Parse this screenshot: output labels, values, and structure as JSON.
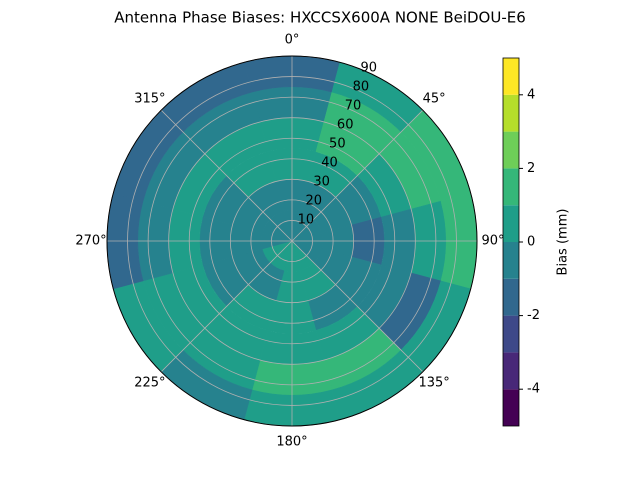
{
  "chart_data": {
    "type": "polar_contour",
    "title": "Antenna Phase Biases: HXCCSX600A      NONE BeiDOU-E6",
    "azimuth": [
      0,
      30,
      60,
      90,
      120,
      150,
      180,
      210,
      240,
      270,
      300,
      330
    ],
    "zenith_edges": [
      0,
      15,
      30,
      45,
      60,
      75,
      90
    ],
    "values": [
      [
        -0.5,
        -0.5,
        0.5,
        0.5,
        -0.5,
        -1.5
      ],
      [
        -0.5,
        -0.5,
        0.5,
        1.5,
        1.5,
        0.5
      ],
      [
        -0.5,
        -0.5,
        -0.5,
        0.5,
        1.5,
        1.5
      ],
      [
        -0.5,
        -0.5,
        -1.5,
        -0.5,
        0.5,
        1.5
      ],
      [
        -0.5,
        -0.5,
        -0.5,
        -0.5,
        -1.5,
        0.5
      ],
      [
        0.5,
        0.5,
        -0.5,
        0.5,
        1.5,
        0.5
      ],
      [
        0.5,
        0.5,
        0.5,
        0.5,
        1.5,
        0.5
      ],
      [
        0.5,
        -0.5,
        0.5,
        0.5,
        0.5,
        -0.5
      ],
      [
        0.5,
        -0.5,
        -0.5,
        0.5,
        0.5,
        0.5
      ],
      [
        -0.5,
        -0.5,
        -0.5,
        0.5,
        -0.5,
        -1.5
      ],
      [
        -0.5,
        -0.5,
        -0.5,
        0.5,
        -0.5,
        -1.5
      ],
      [
        -0.5,
        -0.5,
        0.5,
        0.5,
        -0.5,
        -1.5
      ]
    ],
    "rlim": [
      0,
      90
    ],
    "rticks": [
      10,
      20,
      30,
      40,
      50,
      60,
      70,
      80,
      90
    ],
    "thetaticks": [
      {
        "value": 0,
        "label": "0°"
      },
      {
        "value": 45,
        "label": "45°"
      },
      {
        "value": 90,
        "label": "90°"
      },
      {
        "value": 135,
        "label": "135°"
      },
      {
        "value": 180,
        "label": "180°"
      },
      {
        "value": 225,
        "label": "225°"
      },
      {
        "value": 270,
        "label": "270°"
      },
      {
        "value": 315,
        "label": "315°"
      }
    ],
    "levels": [
      -5,
      -4,
      -3,
      -2,
      -1,
      0,
      1,
      2,
      3,
      4,
      5
    ],
    "colors": [
      "#440154",
      "#482878",
      "#3e4989",
      "#31688e",
      "#26828e",
      "#1f9e89",
      "#35b779",
      "#6ece58",
      "#b5de2b",
      "#fde725"
    ],
    "colorbar_label": "Bias (mm)",
    "colorbar_ticks": [
      -4,
      -2,
      0,
      2,
      4
    ],
    "grid": true
  }
}
